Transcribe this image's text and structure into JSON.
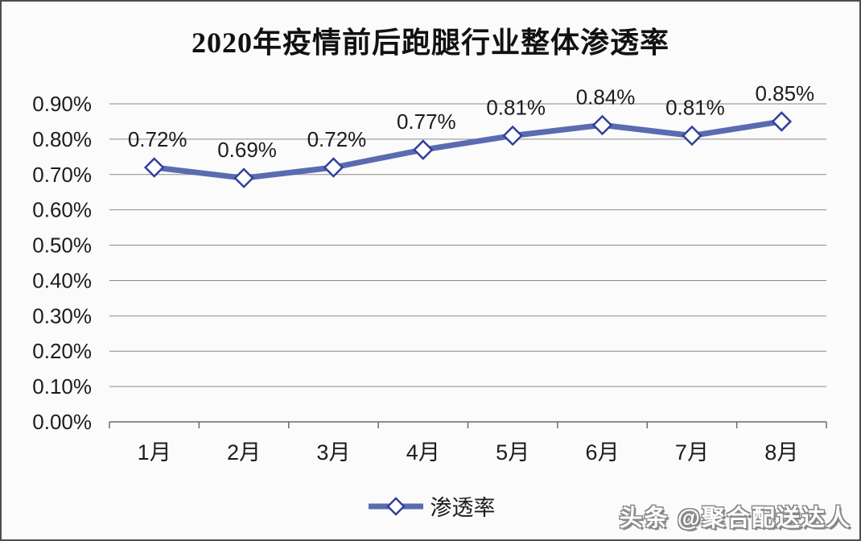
{
  "chart_data": {
    "type": "line",
    "title": "2020年疫情前后跑腿行业整体渗透率",
    "categories": [
      "1月",
      "2月",
      "3月",
      "4月",
      "5月",
      "6月",
      "7月",
      "8月"
    ],
    "series": [
      {
        "name": "渗透率",
        "values": [
          0.72,
          0.69,
          0.72,
          0.77,
          0.81,
          0.84,
          0.81,
          0.85
        ],
        "data_labels": [
          "0.72%",
          "0.69%",
          "0.72%",
          "0.77%",
          "0.81%",
          "0.84%",
          "0.81%",
          "0.85%"
        ]
      }
    ],
    "xlabel": "",
    "ylabel": "",
    "ylim": [
      0,
      0.9
    ],
    "ytick_step": 0.1,
    "ytick_labels": [
      "0.00%",
      "0.10%",
      "0.20%",
      "0.30%",
      "0.40%",
      "0.50%",
      "0.60%",
      "0.70%",
      "0.80%",
      "0.90%"
    ],
    "grid": true,
    "legend_position": "bottom",
    "legend": {
      "label": "渗透率"
    },
    "colors": {
      "line": "#5a6bb0",
      "marker_border": "#32409a",
      "marker_fill": "#ffffff",
      "gridline": "#8e8a87",
      "axis": "#6e6a68",
      "tick_text": "#1c1c1c",
      "title_text": "#111111",
      "background": "#fbfbfb",
      "frame_border": "#4e4e4e",
      "watermark_fill": "#ffffff",
      "watermark_outline": "#8a8a8a"
    }
  },
  "watermark": {
    "text": "头条 @聚合配送达人"
  }
}
